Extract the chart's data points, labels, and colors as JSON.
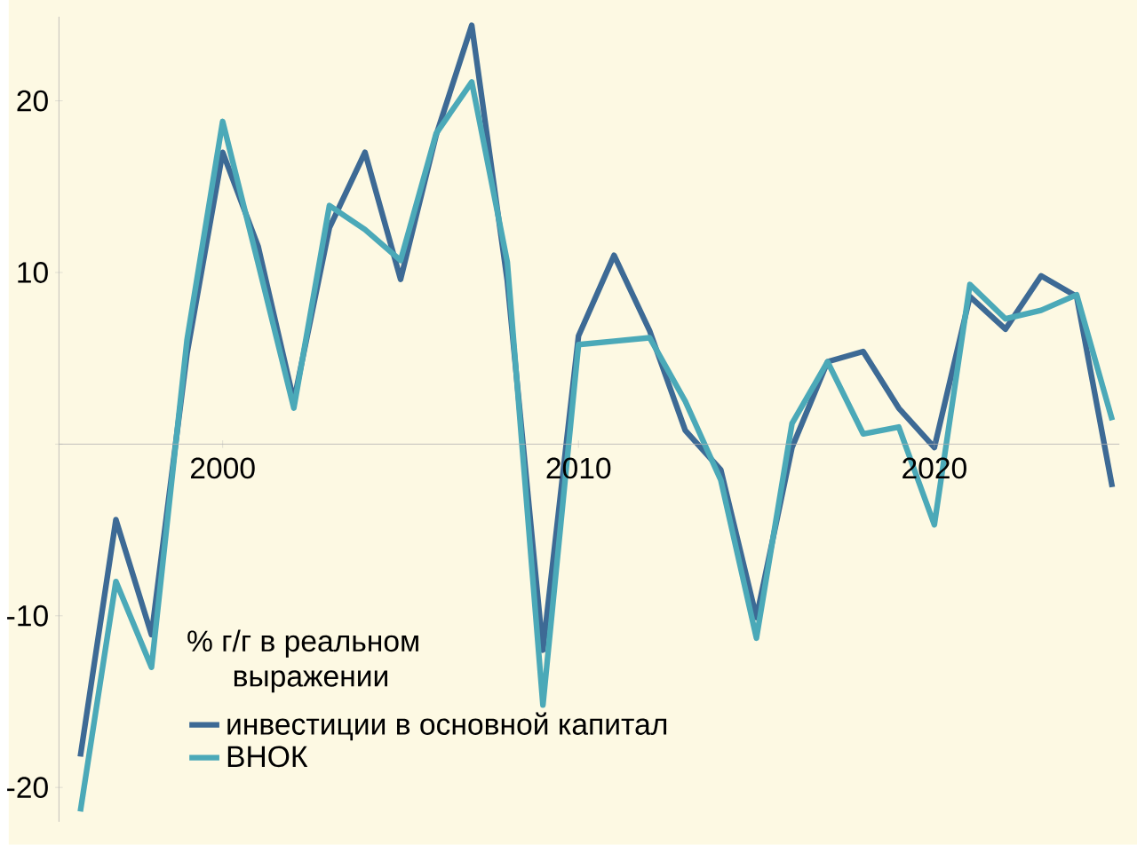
{
  "chart_data": {
    "type": "line",
    "legend_title": "% г/г в реальном выражении",
    "legend": "bottom left",
    "line_style": "solid",
    "x": [
      1996,
      1997,
      1998,
      1999,
      2000,
      2001,
      2002,
      2003,
      2004,
      2005,
      2006,
      2007,
      2008,
      2009,
      2010,
      2011,
      2012,
      2013,
      2014,
      2015,
      2016,
      2017,
      2018,
      2019,
      2020,
      2021,
      2022,
      2023,
      2024,
      2025
    ],
    "xlim": [
      1995.4,
      2025.2
    ],
    "ylim": [
      -22,
      24.9
    ],
    "xticks": [
      2000,
      2010,
      2020
    ],
    "yticks": [
      -20,
      -10,
      {
        "value": 0,
        "label": null
      },
      10,
      20
    ],
    "series": [
      {
        "name": "инвестиции в основной капитал",
        "color": "#3d6a95",
        "values": [
          -18.2,
          -4.4,
          -11.1,
          5.3,
          17.0,
          11.5,
          2.5,
          12.6,
          17.0,
          9.6,
          18.0,
          24.4,
          9.5,
          -12.0,
          6.3,
          11.0,
          6.6,
          0.8,
          -1.5,
          -10.1,
          -0.2,
          4.8,
          5.4,
          2.1,
          -0.2,
          8.6,
          6.7,
          9.8,
          8.6,
          -2.5
        ]
      },
      {
        "name": "ВНОК",
        "color": "#4ba9b8",
        "values": [
          -21.4,
          -8.0,
          -13.0,
          6.1,
          18.8,
          10.5,
          2.1,
          13.9,
          12.5,
          10.7,
          18.1,
          21.1,
          10.6,
          -15.2,
          5.8,
          6.0,
          6.2,
          2.5,
          -2.1,
          -11.3,
          1.2,
          4.8,
          0.6,
          1.0,
          -4.7,
          9.3,
          7.3,
          7.8,
          8.7,
          1.4
        ]
      }
    ]
  }
}
